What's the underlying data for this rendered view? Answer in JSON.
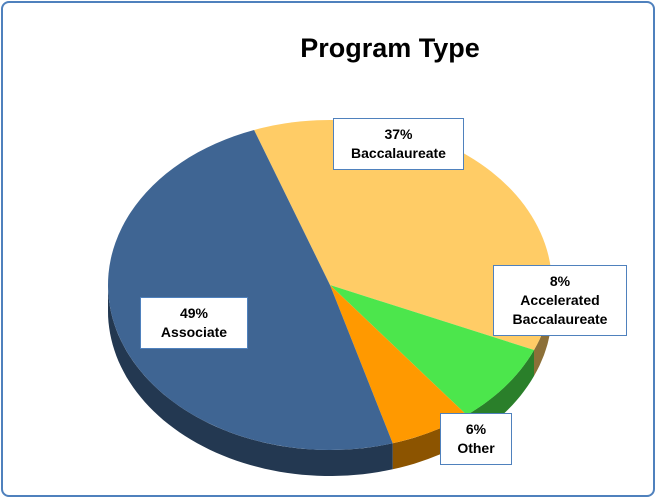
{
  "chart_data": {
    "type": "pie",
    "title": "Program Type",
    "categories": [
      "Baccalaureate",
      "Accelerated Baccalaureate",
      "Other",
      "Associate"
    ],
    "values": [
      37,
      8,
      6,
      49
    ],
    "value_labels": [
      "37%",
      "8%",
      "6%",
      "49%"
    ],
    "colors": [
      "#ffcc66",
      "#4ce64c",
      "#ff9900",
      "#3f6593"
    ]
  }
}
